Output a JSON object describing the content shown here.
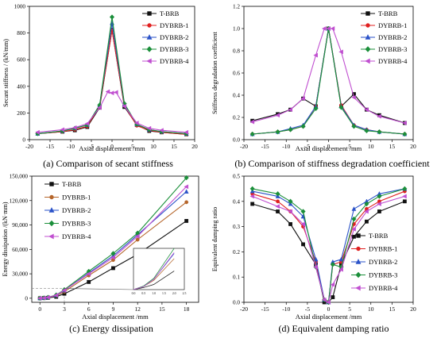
{
  "colors": {
    "T-BRB": "#111111",
    "DYBRB-1": "#e02020",
    "DYBRB-2": "#2a52c8",
    "DYBRB-3": "#1b8f3a",
    "DYBRB-4": "#c04fd0",
    "DYBRB-1c": "#b5652a"
  },
  "chart_data": [
    {
      "type": "line",
      "caption": "(a) Comparison of secant stiffness",
      "xlabel": "Axial displacement /mm",
      "ylabel": "Secant stiffness / (kN/mm)",
      "xlim": [
        -20,
        20
      ],
      "ylim": [
        0,
        1000
      ],
      "xticks": [
        "-20",
        "-15",
        "-10",
        "-5",
        "0",
        "5",
        "10",
        "15",
        "20"
      ],
      "yticks": [
        "0",
        "200",
        "400",
        "600",
        "800",
        "1000"
      ],
      "legend_position": "top-right",
      "series": [
        {
          "name": "T-BRB",
          "marker": "square",
          "x": [
            -18,
            -12,
            -9,
            -6,
            -3,
            0,
            3,
            6,
            9,
            12,
            18
          ],
          "y": [
            45,
            60,
            70,
            95,
            240,
            825,
            245,
            110,
            65,
            55,
            40
          ]
        },
        {
          "name": "DYBRB-1",
          "marker": "circle",
          "x": [
            -18,
            -12,
            -9,
            -6,
            -3,
            0,
            3,
            6,
            9,
            12,
            18
          ],
          "y": [
            45,
            60,
            75,
            100,
            250,
            820,
            255,
            105,
            70,
            55,
            40
          ]
        },
        {
          "name": "DYBRB-2",
          "marker": "triangle",
          "x": [
            -18,
            -12,
            -9,
            -6,
            -3,
            0,
            3,
            6,
            9,
            12,
            18
          ],
          "y": [
            45,
            65,
            85,
            110,
            260,
            875,
            265,
            115,
            75,
            60,
            45
          ]
        },
        {
          "name": "DYBRB-3",
          "marker": "diamond",
          "x": [
            -18,
            -12,
            -9,
            -6,
            -3,
            0,
            3,
            6,
            9,
            12,
            18
          ],
          "y": [
            45,
            65,
            85,
            110,
            260,
            920,
            270,
            115,
            75,
            60,
            45
          ]
        },
        {
          "name": "DYBRB-4",
          "marker": "tri-left",
          "x": [
            -18,
            -12,
            -9,
            -6,
            -3,
            -1,
            0,
            1,
            3,
            6,
            9,
            12,
            18
          ],
          "y": [
            55,
            75,
            90,
            120,
            240,
            360,
            350,
            355,
            250,
            125,
            85,
            70,
            55
          ]
        }
      ]
    },
    {
      "type": "line",
      "caption": "(b) Comparison of stiffness degradation coefficient",
      "xlabel": "Axial displacement /mm",
      "ylabel": "Stiffness degradation coefficient",
      "xlim": [
        -20,
        20
      ],
      "ylim": [
        0,
        1.2
      ],
      "xticks": [
        "-20",
        "-15",
        "-10",
        "-5",
        "0",
        "5",
        "10",
        "15",
        "20"
      ],
      "yticks": [
        "0.0",
        "0.2",
        "0.4",
        "0.6",
        "0.8",
        "1.0",
        "1.2"
      ],
      "legend_position": "top-right",
      "series": [
        {
          "name": "T-BRB",
          "marker": "square",
          "x": [
            -18,
            -12,
            -9,
            -6,
            -3,
            0,
            3,
            6,
            9,
            12,
            18
          ],
          "y": [
            0.17,
            0.23,
            0.27,
            0.37,
            0.3,
            1.0,
            0.3,
            0.41,
            0.27,
            0.22,
            0.15
          ]
        },
        {
          "name": "DYBRB-1",
          "marker": "circle",
          "x": [
            -18,
            -12,
            -9,
            -6,
            -3,
            0,
            3,
            6,
            9,
            12,
            18
          ],
          "y": [
            0.05,
            0.07,
            0.09,
            0.12,
            0.3,
            1.0,
            0.31,
            0.13,
            0.09,
            0.07,
            0.05
          ]
        },
        {
          "name": "DYBRB-2",
          "marker": "triangle",
          "x": [
            -18,
            -12,
            -9,
            -6,
            -3,
            0,
            3,
            6,
            9,
            12,
            18
          ],
          "y": [
            0.05,
            0.07,
            0.1,
            0.13,
            0.3,
            1.0,
            0.3,
            0.13,
            0.09,
            0.07,
            0.05
          ]
        },
        {
          "name": "DYBRB-3",
          "marker": "diamond",
          "x": [
            -18,
            -12,
            -9,
            -6,
            -3,
            0,
            3,
            6,
            9,
            12,
            18
          ],
          "y": [
            0.05,
            0.07,
            0.09,
            0.12,
            0.28,
            1.0,
            0.29,
            0.12,
            0.08,
            0.07,
            0.05
          ]
        },
        {
          "name": "DYBRB-4",
          "marker": "tri-left",
          "x": [
            -18,
            -12,
            -9,
            -6,
            -3,
            -1,
            0,
            1,
            3,
            6,
            9,
            12,
            18
          ],
          "y": [
            0.16,
            0.22,
            0.27,
            0.37,
            0.76,
            1.0,
            1.0,
            1.0,
            0.79,
            0.38,
            0.27,
            0.21,
            0.15
          ]
        }
      ]
    },
    {
      "type": "line",
      "caption": "(c) Energy dissipation",
      "xlabel": "Axial displacement /mm",
      "ylabel": "Energy dissipation /(kN·mm)",
      "xlim": [
        -1,
        19.5
      ],
      "ylim": [
        -5000,
        150000
      ],
      "xticks": [
        "0",
        "3",
        "6",
        "9",
        "12",
        "15",
        "18"
      ],
      "yticks": [
        "0",
        "30,000",
        "60,000",
        "90,000",
        "120,000",
        "150,000"
      ],
      "legend_position": "top-left",
      "inset_ticks": [
        "0.0",
        "0.5",
        "1.0",
        "1.5",
        "2.0",
        "2.5"
      ],
      "series": [
        {
          "name": "T-BRB",
          "marker": "square",
          "x": [
            0,
            0.5,
            1,
            2,
            3,
            6,
            9,
            12,
            18
          ],
          "y": [
            0,
            200,
            500,
            1800,
            5500,
            20000,
            37000,
            54000,
            95000
          ]
        },
        {
          "name": "DYBRB-1",
          "marker": "circle",
          "x": [
            0,
            0.5,
            1,
            2,
            3,
            6,
            9,
            12,
            18
          ],
          "y": [
            0,
            300,
            900,
            3000,
            8000,
            28000,
            47000,
            72000,
            118000
          ]
        },
        {
          "name": "DYBRB-2",
          "marker": "triangle",
          "x": [
            0,
            0.5,
            1,
            2,
            3,
            6,
            9,
            12,
            18
          ],
          "y": [
            0,
            300,
            1000,
            3500,
            9500,
            31000,
            52000,
            78000,
            131000
          ]
        },
        {
          "name": "DYBRB-3",
          "marker": "diamond",
          "x": [
            0,
            0.5,
            1,
            2,
            3,
            6,
            9,
            12,
            18
          ],
          "y": [
            0,
            350,
            1100,
            4000,
            10500,
            33000,
            55000,
            80000,
            148000
          ]
        },
        {
          "name": "DYBRB-4",
          "marker": "tri-left",
          "x": [
            0,
            0.5,
            1,
            2,
            3,
            6,
            9,
            12,
            18
          ],
          "y": [
            0,
            300,
            1000,
            3600,
            9800,
            30000,
            50000,
            76000,
            137000
          ]
        }
      ]
    },
    {
      "type": "line",
      "caption": "(d) Equivalent damping ratio",
      "xlabel": "Axial displacement /mm",
      "ylabel": "Equivalent damping ratio",
      "xlim": [
        -20,
        20
      ],
      "ylim": [
        0,
        0.5
      ],
      "xticks": [
        "-20",
        "-15",
        "-10",
        "-5",
        "0",
        "5",
        "10",
        "15",
        "20"
      ],
      "yticks": [
        "0.0",
        "0.1",
        "0.2",
        "0.3",
        "0.4",
        "0.5"
      ],
      "legend_position": "bottom-right",
      "series": [
        {
          "name": "T-BRB",
          "marker": "square",
          "x": [
            -18,
            -12,
            -9,
            -6,
            -3,
            -1,
            0,
            1,
            3,
            6,
            9,
            12,
            18
          ],
          "y": [
            0.39,
            0.36,
            0.31,
            0.23,
            0.15,
            0.0,
            0.0,
            0.02,
            0.15,
            0.26,
            0.32,
            0.36,
            0.4
          ]
        },
        {
          "name": "DYBRB-1",
          "marker": "circle",
          "x": [
            -18,
            -12,
            -9,
            -6,
            -3,
            -1,
            0,
            1,
            3,
            6,
            9,
            12,
            18
          ],
          "y": [
            0.43,
            0.4,
            0.36,
            0.3,
            0.16,
            0.01,
            0.0,
            0.15,
            0.16,
            0.31,
            0.37,
            0.4,
            0.44
          ]
        },
        {
          "name": "DYBRB-2",
          "marker": "triangle",
          "x": [
            -18,
            -12,
            -9,
            -6,
            -3,
            -1,
            0,
            1,
            3,
            6,
            9,
            12,
            18
          ],
          "y": [
            0.44,
            0.42,
            0.39,
            0.34,
            0.17,
            0.01,
            0.0,
            0.16,
            0.17,
            0.37,
            0.4,
            0.43,
            0.45
          ]
        },
        {
          "name": "DYBRB-3",
          "marker": "diamond",
          "x": [
            -18,
            -12,
            -9,
            -6,
            -3,
            -1,
            0,
            1,
            3,
            6,
            9,
            12,
            18
          ],
          "y": [
            0.45,
            0.43,
            0.4,
            0.36,
            0.14,
            0.01,
            0.0,
            0.15,
            0.14,
            0.33,
            0.39,
            0.42,
            0.45
          ]
        },
        {
          "name": "DYBRB-4",
          "marker": "tri-left",
          "x": [
            -18,
            -12,
            -9,
            -6,
            -3,
            -1,
            0,
            1,
            3,
            6,
            9,
            12,
            18
          ],
          "y": [
            0.42,
            0.38,
            0.36,
            0.31,
            0.14,
            0.01,
            0.0,
            0.07,
            0.13,
            0.29,
            0.36,
            0.39,
            0.42
          ]
        }
      ]
    }
  ]
}
